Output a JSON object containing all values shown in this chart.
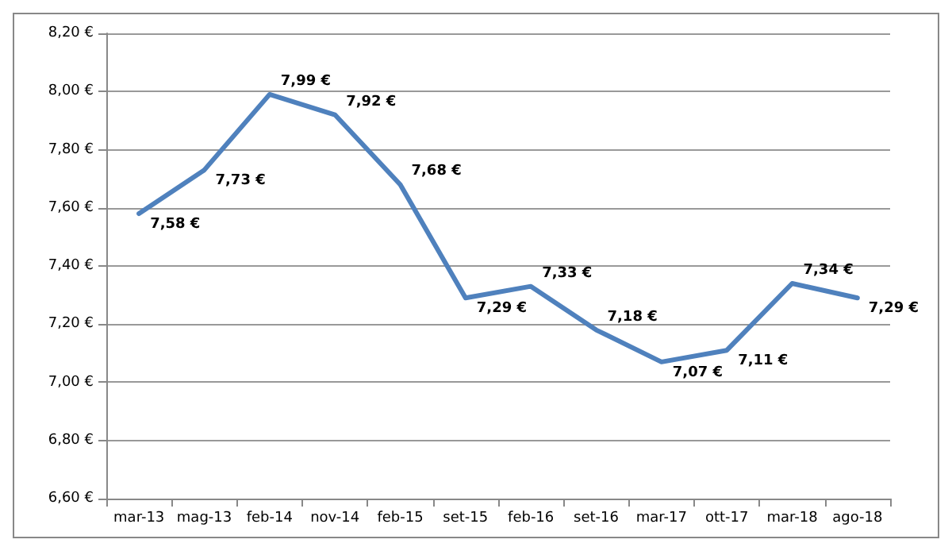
{
  "chart_data": {
    "type": "line",
    "categories": [
      "mar-13",
      "mag-13",
      "feb-14",
      "nov-14",
      "feb-15",
      "set-15",
      "feb-16",
      "set-16",
      "mar-17",
      "ott-17",
      "mar-18",
      "ago-18"
    ],
    "series": [
      {
        "color": "#4f81bd",
        "values": [
          7.58,
          7.73,
          7.99,
          7.92,
          7.68,
          7.29,
          7.33,
          7.18,
          7.07,
          7.11,
          7.34,
          7.29
        ],
        "value_labels": [
          "7,58 €",
          "7,73 €",
          "7,99 €",
          "7,92 €",
          "7,68 €",
          "7,29 €",
          "7,33 €",
          "7,18 €",
          "7,07 €",
          "7,11 €",
          "7,34 €",
          "7,29 €"
        ]
      }
    ],
    "ylim": [
      6.6,
      8.2
    ],
    "yticks": [
      {
        "value": 6.6,
        "label": "6,60 €"
      },
      {
        "value": 6.8,
        "label": "6,80 €"
      },
      {
        "value": 7.0,
        "label": "7,00 €"
      },
      {
        "value": 7.2,
        "label": "7,20 €"
      },
      {
        "value": 7.4,
        "label": "7,40 €"
      },
      {
        "value": 7.6,
        "label": "7,60 €"
      },
      {
        "value": 7.8,
        "label": "7,80 €"
      },
      {
        "value": 8.0,
        "label": "8,00 €"
      },
      {
        "value": 8.2,
        "label": "8,20 €"
      }
    ],
    "grid": "y",
    "marker": "none",
    "line_style": "solid"
  }
}
